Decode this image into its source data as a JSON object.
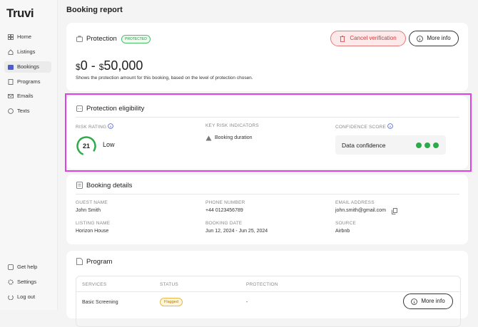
{
  "sidebar": {
    "logo": "Truvi",
    "nav": [
      "Home",
      "Listings",
      "Bookings",
      "Programs",
      "Emails",
      "Texts"
    ],
    "bottom": [
      "Get help",
      "Settings",
      "Log out"
    ]
  },
  "header": {
    "title": "Booking report"
  },
  "protection": {
    "title": "Protection",
    "badge": "PROTECTED",
    "cancel_button": "Cancel verification",
    "info_button": "More info",
    "currency": "$",
    "min": "0",
    "separator": " - ",
    "max": "50,000",
    "description": "Shows the protection amount for this booking, based on the level of protection chosen."
  },
  "eligibility": {
    "title": "Protection eligibility",
    "risk_rating_label": "RISK RATING",
    "risk_score": "21",
    "risk_level": "Low",
    "key_risk_label": "KEY RISK INDICATORS",
    "key_risk": "Booking duration",
    "confidence_label": "CONFIDENCE SCORE",
    "confidence_text": "Data confidence"
  },
  "booking_details": {
    "title": "Booking details",
    "fields": [
      {
        "label": "GUEST NAME",
        "value": "John Smith"
      },
      {
        "label": "PHONE NUMBER",
        "value": "+44 0123456789"
      },
      {
        "label": "EMAIL ADDRESS",
        "value": "john.smith@gmail.com"
      },
      {
        "label": "LISTING NAME",
        "value": "Horizon House"
      },
      {
        "label": "BOOKING DATE",
        "value": "Jun 12, 2024 - Jun 25, 2024"
      },
      {
        "label": "SOURCE",
        "value": "Airbnb"
      }
    ]
  },
  "program": {
    "title": "Program",
    "columns": [
      "SERVICES",
      "STATUS",
      "PROTECTION"
    ],
    "rows": [
      [
        "Basic Screening",
        "Flagged",
        "-"
      ]
    ],
    "button": "More info"
  }
}
